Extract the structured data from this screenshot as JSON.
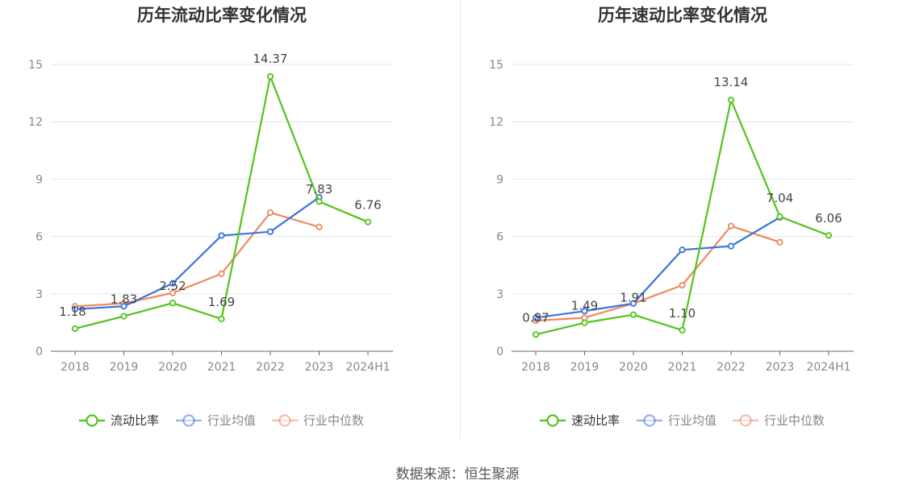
{
  "chart_data": [
    {
      "type": "line",
      "title": "历年流动比率变化情况",
      "categories": [
        "2018",
        "2019",
        "2020",
        "2021",
        "2022",
        "2023",
        "2024H1"
      ],
      "ylim": [
        0,
        15
      ],
      "yticks": [
        "0",
        "3",
        "6",
        "9",
        "12",
        "15"
      ],
      "grid": true,
      "legend_position": "bottom",
      "series": [
        {
          "name": "流动比率",
          "color": "#52c41a",
          "values": [
            1.18,
            1.83,
            2.52,
            1.69,
            14.37,
            7.83,
            6.76
          ],
          "labels": [
            "1.18",
            "1.83",
            "2.52",
            "1.69",
            "14.37",
            "7.83",
            "6.76"
          ]
        },
        {
          "name": "行业均值",
          "color": "#3a74db",
          "values": [
            2.2,
            2.35,
            3.55,
            6.05,
            6.25,
            8.05,
            null
          ]
        },
        {
          "name": "行业中位数",
          "color": "#ee8a5f",
          "values": [
            2.35,
            2.5,
            3.05,
            4.05,
            7.25,
            6.5,
            null
          ]
        }
      ]
    },
    {
      "type": "line",
      "title": "历年速动比率变化情况",
      "categories": [
        "2018",
        "2019",
        "2020",
        "2021",
        "2022",
        "2023",
        "2024H1"
      ],
      "ylim": [
        0,
        15
      ],
      "yticks": [
        "0",
        "3",
        "6",
        "9",
        "12",
        "15"
      ],
      "grid": true,
      "legend_position": "bottom",
      "series": [
        {
          "name": "速动比率",
          "color": "#52c41a",
          "values": [
            0.87,
            1.49,
            1.91,
            1.1,
            13.14,
            7.04,
            6.06
          ],
          "labels": [
            "0.87",
            "1.49",
            "1.91",
            "1.10",
            "13.14",
            "7.04",
            "6.06"
          ]
        },
        {
          "name": "行业均值",
          "color": "#3a74db",
          "values": [
            1.75,
            2.1,
            2.5,
            5.3,
            5.5,
            7.0,
            null
          ]
        },
        {
          "name": "行业中位数",
          "color": "#ee8a5f",
          "values": [
            1.6,
            1.75,
            2.5,
            3.45,
            6.55,
            5.7,
            null
          ]
        }
      ]
    }
  ],
  "footer": {
    "source": "数据来源：恒生聚源"
  }
}
